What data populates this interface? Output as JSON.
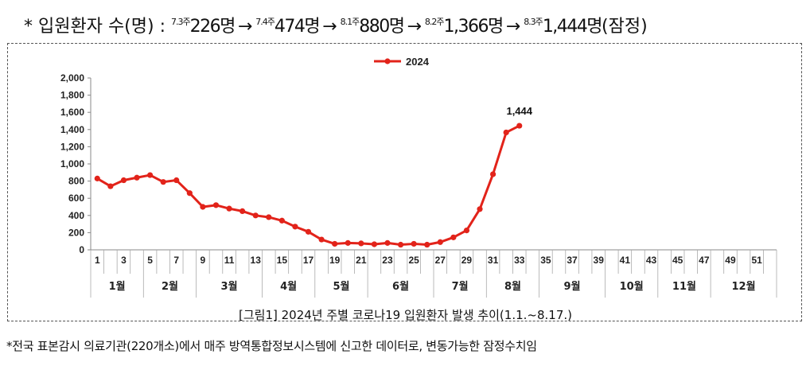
{
  "headline": {
    "prefix": "* 입원환자 수(명) :",
    "items": [
      {
        "week": "7.3주",
        "value": "226명"
      },
      {
        "week": "7.4주",
        "value": "474명"
      },
      {
        "week": "8.1주",
        "value": "880명"
      },
      {
        "week": "8.2주",
        "value": "1,366명"
      },
      {
        "week": "8.3주",
        "value": "1,444명",
        "suffix": "(잠정)"
      }
    ],
    "arrow": "→"
  },
  "caption": "[그림1] 2024년 주별 코로나19 입원환자 발생 추이(1.1.~8.17.)",
  "footnote": "*전국 표본감시 의료기관(220개소)에서 매주 방역통합정보시스템에 신고한 데이터로, 변동가능한 잠정수치임",
  "colors": {
    "series": "#e2231a"
  },
  "chart_data": {
    "type": "line",
    "legend_position": "top",
    "grid": false,
    "ylim": [
      0,
      2000
    ],
    "yticks": [
      "0",
      "200",
      "400",
      "600",
      "800",
      "1,000",
      "1,200",
      "1,400",
      "1,600",
      "1,800",
      "2,000"
    ],
    "xlim": [
      1,
      52
    ],
    "xtick_labels": [
      "1",
      "3",
      "5",
      "7",
      "9",
      "11",
      "13",
      "15",
      "17",
      "19",
      "21",
      "23",
      "25",
      "27",
      "29",
      "31",
      "33",
      "35",
      "37",
      "39",
      "41",
      "43",
      "45",
      "47",
      "49",
      "51"
    ],
    "months": [
      "1월",
      "2월",
      "3월",
      "4월",
      "5월",
      "6월",
      "7월",
      "8월",
      "9월",
      "10월",
      "11월",
      "12월"
    ],
    "month_week_bounds": [
      1,
      5,
      9,
      14,
      18,
      22,
      27,
      31,
      35,
      40,
      44,
      48,
      53
    ],
    "series": [
      {
        "name": "2024",
        "x": [
          1,
          2,
          3,
          4,
          5,
          6,
          7,
          8,
          9,
          10,
          11,
          12,
          13,
          14,
          15,
          16,
          17,
          18,
          19,
          20,
          21,
          22,
          23,
          24,
          25,
          26,
          27,
          28,
          29,
          30,
          31,
          32,
          33
        ],
        "values": [
          830,
          740,
          810,
          840,
          870,
          790,
          810,
          660,
          500,
          520,
          480,
          450,
          400,
          380,
          340,
          270,
          210,
          120,
          70,
          80,
          75,
          65,
          80,
          60,
          70,
          60,
          90,
          145,
          226,
          474,
          880,
          1366,
          1444
        ]
      }
    ],
    "annotations": [
      {
        "x": 33,
        "text": "1,444"
      }
    ]
  }
}
